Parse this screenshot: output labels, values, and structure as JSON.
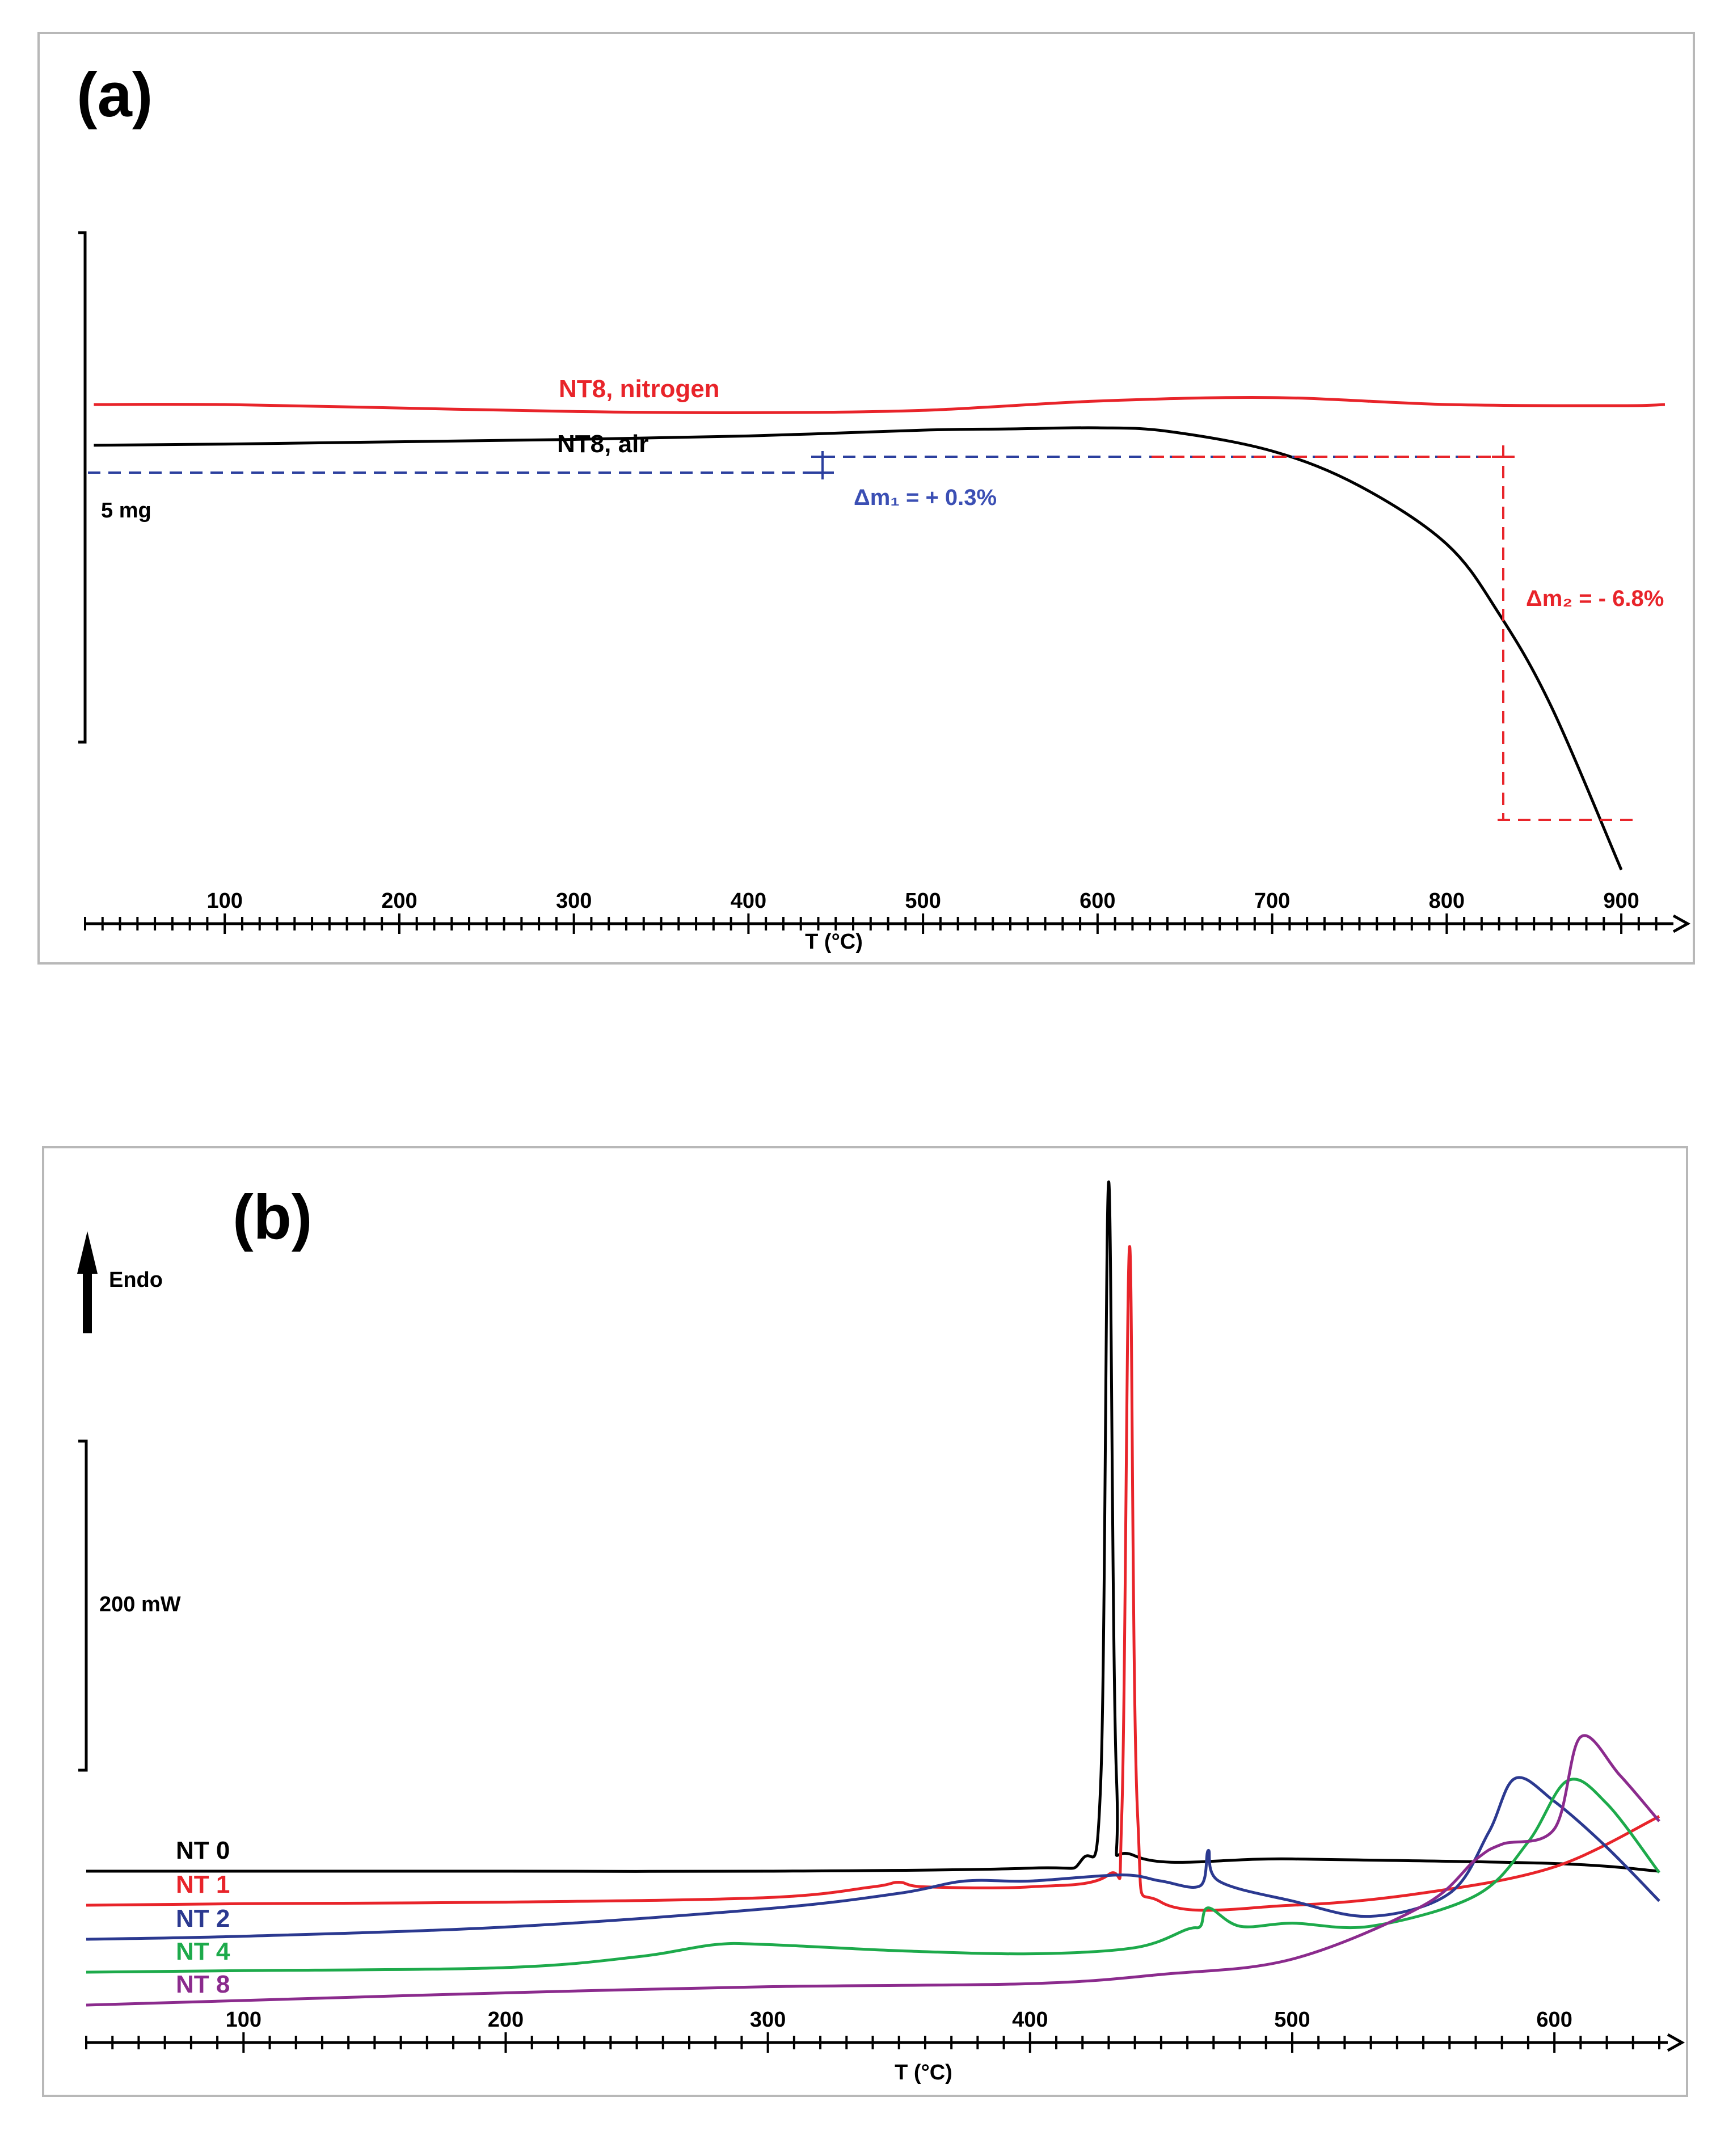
{
  "chart_data": [
    {
      "panel": "(a)",
      "type": "line",
      "xlabel": "T (°C)",
      "xlim": [
        20,
        925
      ],
      "ticks": [
        100,
        200,
        300,
        400,
        500,
        600,
        700,
        800,
        900
      ],
      "scale_bar": "5 mg",
      "series": [
        {
          "name": "NT8, nitrogen",
          "color": "#e8242a",
          "x": [
            25,
            100,
            200,
            300,
            400,
            500,
            600,
            700,
            800,
            900,
            925
          ],
          "offset": [
            0.0,
            0.0,
            -0.03,
            -0.06,
            -0.07,
            -0.05,
            0.03,
            0.06,
            0.0,
            -0.01,
            0.0
          ]
        },
        {
          "name": "NT8, air",
          "color": "#000000",
          "x": [
            25,
            100,
            200,
            300,
            400,
            500,
            550,
            600,
            640,
            700,
            750,
            800,
            830,
            860,
            900
          ],
          "offset": [
            -0.35,
            -0.34,
            -0.32,
            -0.3,
            -0.27,
            -0.22,
            -0.21,
            -0.2,
            -0.23,
            -0.4,
            -0.7,
            -1.2,
            -1.8,
            -2.6,
            -4.0
          ]
        }
      ],
      "annotations": {
        "dm1": "Δm₁ = + 0.3%",
        "dm2": "Δm₂ = - 6.8%"
      }
    },
    {
      "panel": "(b)",
      "type": "line",
      "xlabel": "T (°C)",
      "xlim": [
        40,
        640
      ],
      "ticks": [
        100,
        200,
        300,
        400,
        500,
        600
      ],
      "scale_bar": "200 mW",
      "direction_label": "Endo",
      "series": [
        {
          "name": "NT 0",
          "color": "#000000",
          "x": [
            40,
            100,
            200,
            300,
            400,
            420,
            427,
            430,
            433,
            440,
            500,
            600,
            640
          ],
          "y": [
            0,
            0,
            0,
            0,
            2,
            8,
            60,
            450,
            60,
            10,
            8,
            5,
            0
          ]
        },
        {
          "name": "NT 1",
          "color": "#e8242a",
          "x": [
            40,
            100,
            200,
            300,
            340,
            350,
            360,
            400,
            430,
            435,
            438,
            441,
            450,
            500,
            550,
            600,
            640
          ],
          "y": [
            0,
            1,
            2,
            5,
            12,
            15,
            12,
            12,
            20,
            60,
            430,
            60,
            2,
            0,
            8,
            25,
            58
          ]
        },
        {
          "name": "NT 2",
          "color": "#2b3990",
          "x": [
            40,
            100,
            200,
            300,
            350,
            375,
            400,
            435,
            450,
            465,
            468,
            472,
            500,
            530,
            560,
            575,
            585,
            600,
            620,
            640
          ],
          "y": [
            0,
            2,
            8,
            20,
            30,
            38,
            38,
            42,
            38,
            35,
            58,
            38,
            25,
            15,
            30,
            70,
            105,
            90,
            60,
            25
          ]
        },
        {
          "name": "NT 4",
          "color": "#1daa4b",
          "x": [
            40,
            100,
            200,
            250,
            280,
            300,
            350,
            400,
            440,
            460,
            465,
            468,
            480,
            500,
            530,
            570,
            590,
            605,
            620,
            640
          ],
          "y": [
            0,
            1,
            3,
            10,
            18,
            18,
            14,
            12,
            16,
            28,
            30,
            42,
            30,
            32,
            30,
            50,
            85,
            125,
            110,
            65
          ]
        },
        {
          "name": "NT 8",
          "color": "#8b2b8d",
          "x": [
            40,
            100,
            200,
            300,
            400,
            450,
            500,
            550,
            570,
            580,
            600,
            610,
            625,
            640
          ],
          "y": [
            0,
            3,
            8,
            12,
            14,
            20,
            30,
            65,
            95,
            105,
            115,
            175,
            150,
            120
          ]
        }
      ]
    }
  ]
}
